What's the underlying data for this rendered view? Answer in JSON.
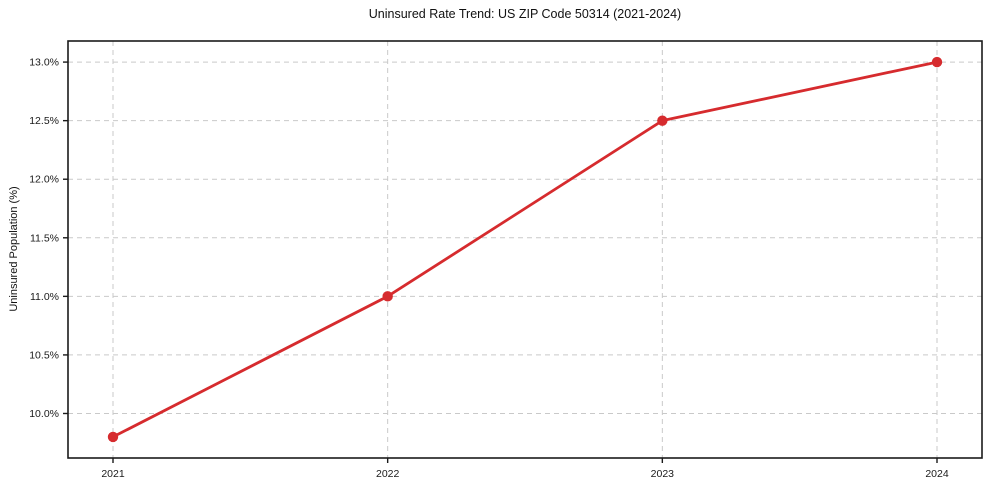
{
  "chart_data": {
    "type": "line",
    "title": "Uninsured Rate Trend: US ZIP Code 50314 (2021-2024)",
    "xlabel": "",
    "ylabel": "Uninsured Population (%)",
    "categories": [
      "2021",
      "2022",
      "2023",
      "2024"
    ],
    "series": [
      {
        "name": "Uninsured Population (%)",
        "values": [
          9.8,
          11.0,
          12.5,
          13.0
        ]
      }
    ],
    "point_labels": [
      "9.8%",
      "11.0%",
      "12.5%",
      "13.0%"
    ],
    "ylim": [
      9.62,
      13.18
    ],
    "yticks": [
      {
        "value": 10.0,
        "label": "10.0%"
      },
      {
        "value": 10.5,
        "label": "10.5%"
      },
      {
        "value": 11.0,
        "label": "11.0%"
      },
      {
        "value": 11.5,
        "label": "11.5%"
      },
      {
        "value": 12.0,
        "label": "12.0%"
      },
      {
        "value": 12.5,
        "label": "12.5%"
      },
      {
        "value": 13.0,
        "label": "13.0%"
      }
    ],
    "grid": true,
    "grid_style": "dashed",
    "legend_position": "none",
    "colors": {
      "line": "#d62b2e",
      "marker": "#d62b2e",
      "grid": "#c9c9c9",
      "axis": "#1a1a1a",
      "tick_text": "#1a1a1a",
      "background": "#ffffff"
    }
  }
}
